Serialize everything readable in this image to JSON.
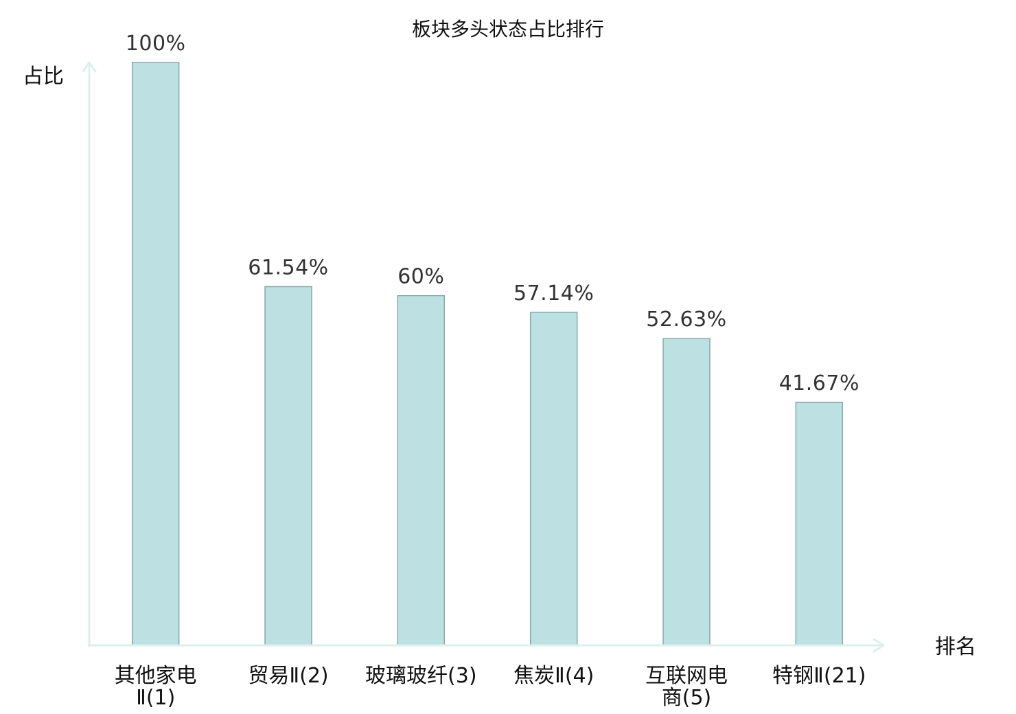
{
  "chart_data": {
    "type": "bar",
    "title": "板块多头状态占比排行",
    "ylabel": "占比",
    "xlabel": "排名",
    "categories": [
      "其他家电Ⅱ(1)",
      "贸易Ⅱ(2)",
      "玻璃玻纤(3)",
      "焦炭Ⅱ(4)",
      "互联网电商(5)",
      "特钢Ⅱ(21)"
    ],
    "values": [
      100,
      61.54,
      60,
      57.14,
      52.63,
      41.67
    ],
    "data_labels": [
      "100%",
      "61.54%",
      "60%",
      "57.14%",
      "52.63%",
      "41.67%"
    ],
    "ylim": [
      0,
      100
    ],
    "grid": false,
    "highlight_index": 5,
    "colors": {
      "bar_fill": "#bde0e3",
      "bar_stroke": "#8aa8aa",
      "axis": "#dcf0ec",
      "text": "#111111",
      "data_label": "#333333",
      "highlight_label": "#e3161b"
    }
  }
}
